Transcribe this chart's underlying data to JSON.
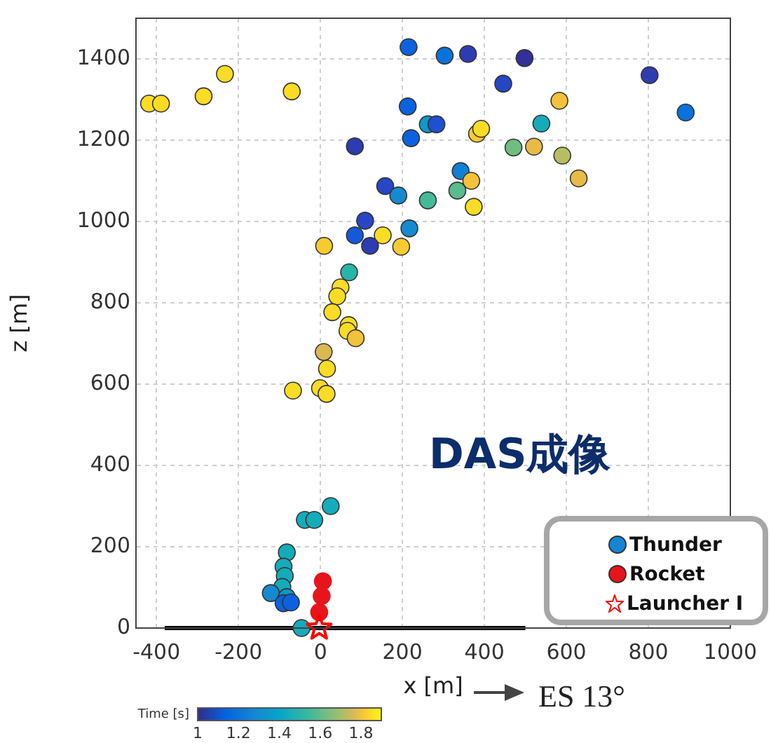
{
  "chart_data": {
    "type": "scatter",
    "xlabel": "x [m]",
    "ylabel": "z [m]",
    "clabel": "Time [s]",
    "xlim": [
      -450,
      1000
    ],
    "xticks": [
      -400,
      -200,
      0,
      200,
      400,
      600,
      800,
      1000
    ],
    "ylim": [
      0,
      1500
    ],
    "yticks": [
      0,
      200,
      400,
      600,
      800,
      1000,
      1200,
      1400
    ],
    "clim": [
      1,
      1.9
    ],
    "cticks": [
      1,
      1.2,
      1.4,
      1.6,
      1.8
    ],
    "grid": true,
    "legend": "bottom right",
    "annotations": [
      "DAS成像",
      "ES 13°"
    ],
    "series": [
      {
        "name": "Thunder",
        "type": "scatter",
        "marker": "circle",
        "x": [
          -418,
          -389,
          -285,
          -233,
          -70,
          215,
          213,
          262,
          283,
          221,
          84,
          158,
          190,
          262,
          109,
          84,
          152,
          217,
          121,
          9,
          197,
          70,
          49,
          41,
          29,
          69,
          66,
          86,
          8,
          16,
          -67,
          -1,
          15,
          25,
          -38,
          -15,
          -82,
          -90,
          -87,
          -93,
          -121,
          -82,
          -90,
          -72,
          -46,
          303,
          360,
          498,
          446,
          803,
          891,
          583,
          382,
          392,
          539,
          471,
          521,
          590,
          630,
          342,
          368,
          334,
          374
        ],
        "values": [
          1290,
          1290,
          1308,
          1363,
          1320,
          1429,
          1283,
          1239,
          1239,
          1205,
          1185,
          1087,
          1064,
          1052,
          1002,
          966,
          966,
          983,
          940,
          940,
          938,
          875,
          838,
          816,
          777,
          745,
          731,
          713,
          679,
          638,
          584,
          590,
          576,
          300,
          266,
          266,
          186,
          151,
          128,
          101,
          86,
          76,
          61,
          63,
          0,
          1408,
          1412,
          1402,
          1339,
          1360,
          1268,
          1297,
          1216,
          1228,
          1241,
          1182,
          1184,
          1162,
          1106,
          1124,
          1100,
          1076,
          1036
        ],
        "colors": [
          "#fbdc24",
          "#fbdc24",
          "#fbdc24",
          "#fbdc24",
          "#fbdc24",
          "#0a62e0",
          "#0a62e0",
          "#0e98cb",
          "#1e50d2",
          "#0a62e0",
          "#2d3cb0",
          "#2646c4",
          "#148ad0",
          "#45ba98",
          "#2646c4",
          "#1558da",
          "#fbdc24",
          "#148ad0",
          "#2d3cb0",
          "#f7cb30",
          "#f7cb30",
          "#28b4a8",
          "#fbdc24",
          "#fbdc24",
          "#fbdc24",
          "#fbdc24",
          "#fbdc24",
          "#f2c23a",
          "#dcb850",
          "#fbdc24",
          "#fbdc24",
          "#fbdc24",
          "#fbdc24",
          "#14abbb",
          "#14abbb",
          "#14abbb",
          "#14abbb",
          "#14abbb",
          "#14abbb",
          "#14abbb",
          "#148ad0",
          "#0e98cb",
          "#0a62e0",
          "#0a62e0",
          "#14abbb",
          "#0a72dc",
          "#2d3cb0",
          "#33309a",
          "#2646c4",
          "#2d3cb0",
          "#0a72dc",
          "#f2c23a",
          "#f7cb30",
          "#fbdc24",
          "#14abbb",
          "#6fbd80",
          "#e9ba46",
          "#b8bd62",
          "#e9ba46",
          "#1080d4",
          "#f2c23a",
          "#5abb8c",
          "#fbdc24"
        ]
      },
      {
        "name": "Rocket",
        "type": "scatter",
        "marker": "circle",
        "color": "#e8141b",
        "x": [
          6,
          3,
          -3
        ],
        "values": [
          115,
          79,
          39
        ]
      },
      {
        "name": "Launcher I",
        "type": "scatter",
        "marker": "star",
        "color": "#ff0000",
        "x": [
          -3
        ],
        "values": [
          0
        ]
      },
      {
        "type": "line",
        "color": "#000000",
        "x": [
          -380,
          500
        ],
        "values": [
          0,
          0
        ]
      }
    ]
  }
}
